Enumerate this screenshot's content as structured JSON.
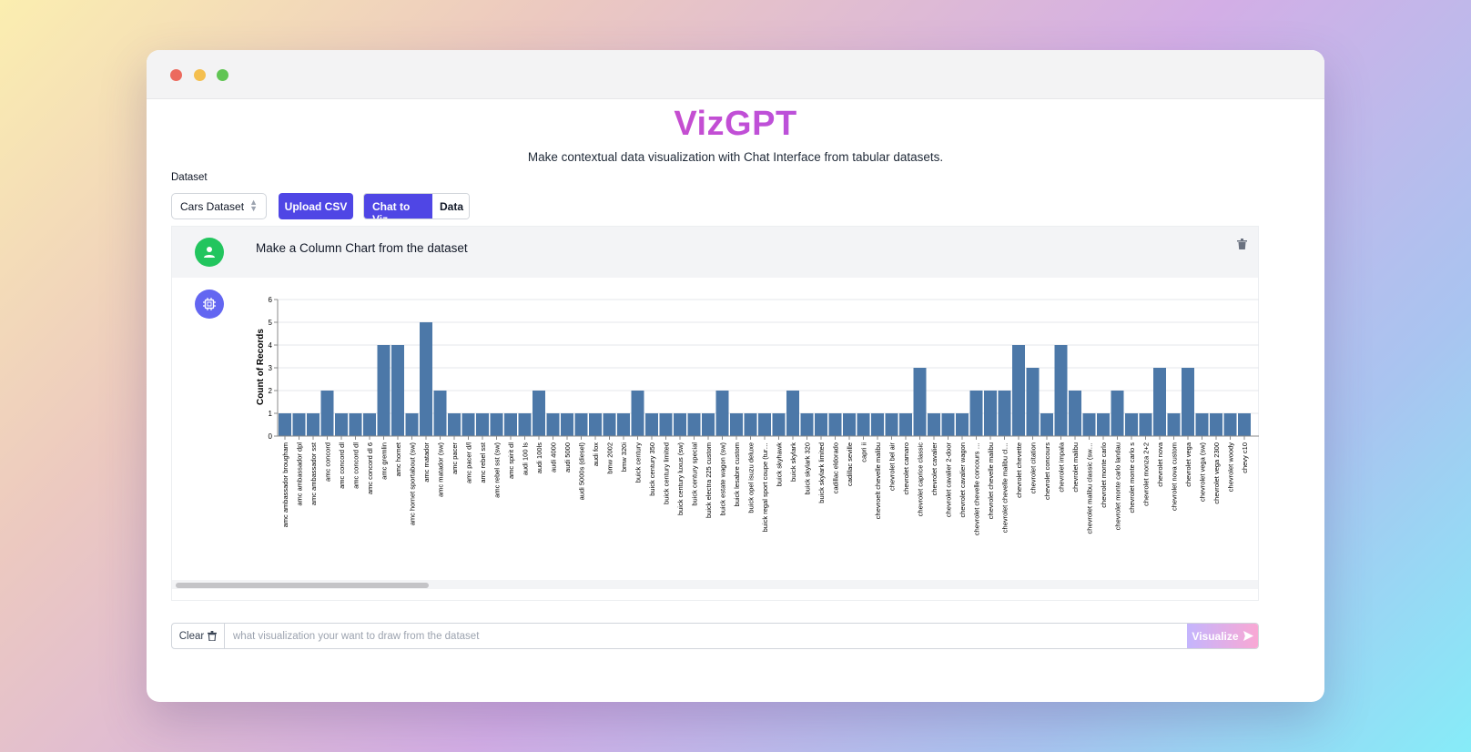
{
  "app": {
    "brand": "VizGPT",
    "tagline": "Make contextual data visualization with Chat Interface from tabular datasets."
  },
  "controls": {
    "dataset_label": "Dataset",
    "dataset_selected": "Cars Dataset",
    "upload_label": "Upload CSV",
    "chat_to_viz_label": "Chat to Viz",
    "data_label": "Data"
  },
  "chat": {
    "user_message": "Make a Column Chart from the dataset"
  },
  "bottom": {
    "clear_label": "Clear",
    "prompt_placeholder": "what visualization your want to draw from the dataset",
    "visualize_label": "Visualize"
  },
  "icons": {
    "user": "user-icon",
    "bot": "chip-icon",
    "trash": "trash-icon",
    "send": "send-icon"
  },
  "colors": {
    "accent": "#4f46e5",
    "bar": "#4c78a8",
    "user_avatar": "#22c55e",
    "bot_avatar": "#6366f1"
  },
  "chart_data": {
    "type": "bar",
    "ylabel": "Count of Records",
    "ylim": [
      0,
      6
    ],
    "yticks": [
      0,
      1,
      2,
      3,
      4,
      5,
      6
    ],
    "grid": true,
    "categories": [
      "amc ambassador brougham",
      "amc ambassador dpl",
      "amc ambassador sst",
      "amc concord",
      "amc concord dl",
      "amc concord dl",
      "amc concord dl 6",
      "amc gremlin",
      "amc hornet",
      "amc hornet sportabout (sw)",
      "amc matador",
      "amc matador (sw)",
      "amc pacer",
      "amc pacer d/l",
      "amc rebel sst",
      "amc rebel sst (sw)",
      "amc spirit dl",
      "audi 100 ls",
      "audi 100ls",
      "audi 4000",
      "audi 5000",
      "audi 5000s (diesel)",
      "audi fox",
      "bmw 2002",
      "bmw 320i",
      "buick century",
      "buick century 350",
      "buick century limited",
      "buick century luxus (sw)",
      "buick century special",
      "buick electra 225 custom",
      "buick estate wagon (sw)",
      "buick lesabre custom",
      "buick opel isuzu deluxe",
      "buick regal sport coupe (turbo)",
      "buick skyhawk",
      "buick skylark",
      "buick skylark 320",
      "buick skylark limited",
      "cadillac eldorado",
      "cadillac seville",
      "capri ii",
      "chevroelt chevelle malibu",
      "chevrolet bel air",
      "chevrolet camaro",
      "chevrolet caprice classic",
      "chevrolet cavalier",
      "chevrolet cavalier 2-door",
      "chevrolet cavalier wagon",
      "chevrolet chevelle concours (sw)",
      "chevrolet chevelle malibu",
      "chevrolet chevelle malibu classic",
      "chevrolet chevette",
      "chevrolet citation",
      "chevrolet concours",
      "chevrolet impala",
      "chevrolet malibu",
      "chevrolet malibu classic (sw)",
      "chevrolet monte carlo",
      "chevrolet monte carlo landau",
      "chevrolet monte carlo s",
      "chevrolet monza 2+2",
      "chevrolet nova",
      "chevrolet nova custom",
      "chevrolet vega",
      "chevrolet vega (sw)",
      "chevrolet vega 2300",
      "chevrolet woody",
      "chevy c10"
    ],
    "values": [
      1,
      1,
      1,
      2,
      1,
      1,
      1,
      4,
      4,
      1,
      5,
      2,
      1,
      1,
      1,
      1,
      1,
      1,
      2,
      1,
      1,
      1,
      1,
      1,
      1,
      2,
      1,
      1,
      1,
      1,
      1,
      2,
      1,
      1,
      1,
      1,
      2,
      1,
      1,
      1,
      1,
      1,
      1,
      1,
      1,
      3,
      1,
      1,
      1,
      2,
      2,
      2,
      4,
      3,
      1,
      4,
      2,
      1,
      1,
      2,
      1,
      1,
      3,
      1,
      3,
      1,
      1,
      1,
      1
    ]
  }
}
